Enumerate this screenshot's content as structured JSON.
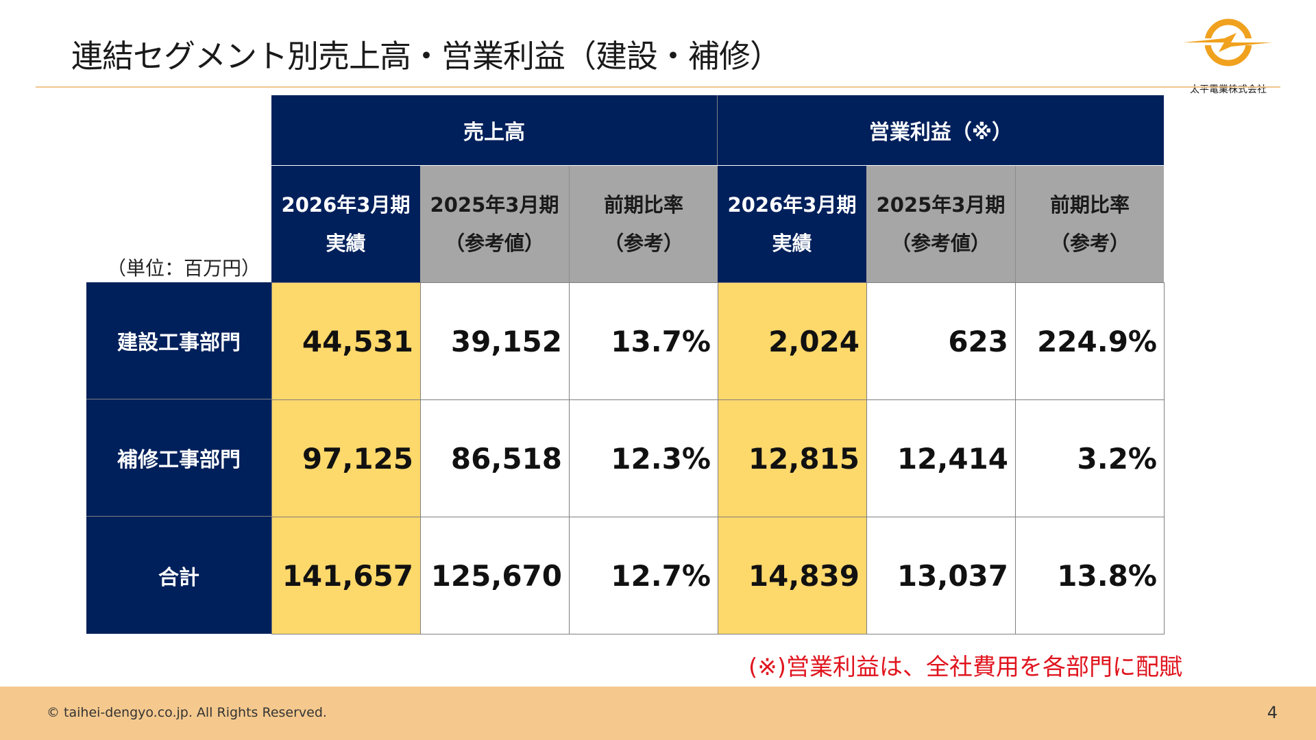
{
  "header": {
    "title": "連結セグメント別売上高・営業利益（建設・補修）",
    "logo_text": "太平電業株式会社",
    "logo_icon": "lightning-circle-logo"
  },
  "table": {
    "unit_label": "（単位：百万円）",
    "groups": [
      {
        "label": "売上高"
      },
      {
        "label": "営業利益（※）"
      }
    ],
    "subheaders": [
      {
        "line1": "2026年3月期",
        "line2": "実績"
      },
      {
        "line1": "2025年3月期",
        "line2": "（参考値）"
      },
      {
        "line1": "前期比率",
        "line2": "（参考）"
      },
      {
        "line1": "2026年3月期",
        "line2": "実績"
      },
      {
        "line1": "2025年3月期",
        "line2": "（参考値）"
      },
      {
        "line1": "前期比率",
        "line2": "（参考）"
      }
    ],
    "rows": [
      {
        "label": "建設工事部門",
        "values": [
          "44,531",
          "39,152",
          "13.7%",
          "2,024",
          "623",
          "224.9%"
        ]
      },
      {
        "label": "補修工事部門",
        "values": [
          "97,125",
          "86,518",
          "12.3%",
          "12,815",
          "12,414",
          "3.2%"
        ]
      },
      {
        "label": "合計",
        "values": [
          "141,657",
          "125,670",
          "12.7%",
          "14,839",
          "13,037",
          "13.8%"
        ]
      }
    ]
  },
  "note": "(※)営業利益は、全社費用を各部門に配賦",
  "footer": {
    "copyright": "© taihei-dengyo.co.jp. All Rights Reserved.",
    "page_number": "4"
  },
  "colors": {
    "navy": "#00205b",
    "grey": "#a6a6a6",
    "highlight": "#fdd86b",
    "accent": "#f5c98e",
    "note_red": "#e0141e"
  }
}
